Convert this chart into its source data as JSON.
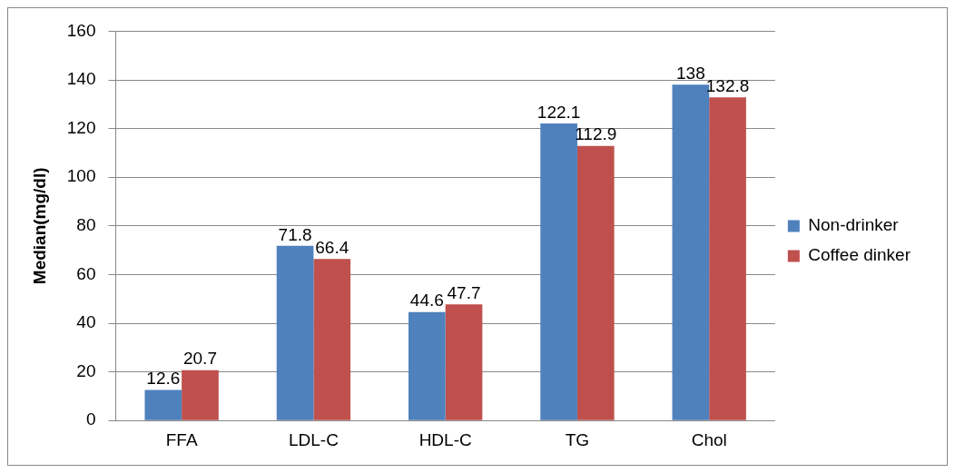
{
  "chart_data": {
    "type": "bar",
    "ylabel": "Median(mg/dl)",
    "categories": [
      "FFA",
      "LDL-C",
      "HDL-C",
      "TG",
      "Chol"
    ],
    "series": [
      {
        "name": "Non-drinker",
        "color": "#4f81bd",
        "values": [
          12.6,
          71.8,
          44.6,
          122.1,
          138
        ]
      },
      {
        "name": "Coffee dinker",
        "color": "#c0504d",
        "values": [
          20.7,
          66.4,
          47.7,
          112.9,
          132.8
        ]
      }
    ],
    "ylim": [
      0,
      160
    ],
    "yticks": [
      0,
      20,
      40,
      60,
      80,
      100,
      120,
      140,
      160
    ],
    "grid": "y",
    "legend": "right",
    "data_labels": true
  }
}
